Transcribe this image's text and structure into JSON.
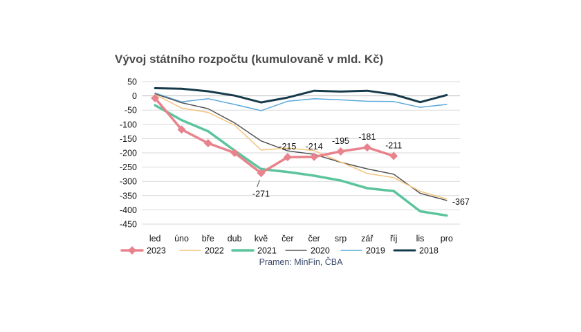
{
  "chart_data": {
    "type": "line",
    "title": "Vývoj státního rozpočtu (kumulovaně v mld. Kč)",
    "source": "Pramen: MinFin, ČBA",
    "categories": [
      "led",
      "úno",
      "bře",
      "dub",
      "kvě",
      "čer",
      "čer",
      "srp",
      "zář",
      "říj",
      "lis",
      "pro"
    ],
    "yticks": [
      "50",
      "0",
      "-50",
      "-100",
      "-150",
      "-200",
      "-250",
      "-300",
      "-350",
      "-400",
      "-450"
    ],
    "ylim": [
      -450,
      50
    ],
    "grid": true,
    "legend_position": "bottom",
    "series": [
      {
        "name": "2023",
        "color": "#e8828c",
        "width": 3.5,
        "marker": "diamond",
        "values": [
          -8,
          -118,
          -166,
          -200,
          -271,
          -215,
          -214,
          -195,
          -181,
          -211,
          null,
          null
        ]
      },
      {
        "name": "2022",
        "color": "#f3c37c",
        "width": 1.5,
        "values": [
          5,
          -43,
          -58,
          -103,
          -190,
          -183,
          -192,
          -232,
          -272,
          -287,
          -335,
          -362
        ]
      },
      {
        "name": "2021",
        "color": "#5cc49c",
        "width": 3.5,
        "values": [
          -33,
          -85,
          -124,
          -192,
          -257,
          -267,
          -280,
          -297,
          -324,
          -334,
          -405,
          -420
        ]
      },
      {
        "name": "2020",
        "color": "#555555",
        "width": 1.5,
        "values": [
          7,
          -24,
          -45,
          -95,
          -158,
          -193,
          -205,
          -233,
          -256,
          -275,
          -342,
          -367
        ]
      },
      {
        "name": "2019",
        "color": "#5ba8db",
        "width": 1.5,
        "values": [
          10,
          -21,
          -10,
          -30,
          -52,
          -19,
          -10,
          -14,
          -19,
          -20,
          -40,
          -30
        ]
      },
      {
        "name": "2018",
        "color": "#163a4b",
        "width": 3,
        "values": [
          27,
          25,
          16,
          1,
          -23,
          -6,
          18,
          15,
          18,
          5,
          -22,
          3
        ]
      }
    ],
    "data_labels": [
      {
        "series": "2023",
        "index": 4,
        "text": "-271",
        "pos": "below"
      },
      {
        "series": "2023",
        "index": 5,
        "text": "-215",
        "pos": "above"
      },
      {
        "series": "2023",
        "index": 6,
        "text": "-214",
        "pos": "above"
      },
      {
        "series": "2023",
        "index": 7,
        "text": "-195",
        "pos": "above"
      },
      {
        "series": "2023",
        "index": 8,
        "text": "-181",
        "pos": "above"
      },
      {
        "series": "2023",
        "index": 9,
        "text": "-211",
        "pos": "above"
      },
      {
        "series": "2020",
        "index": 11,
        "text": "-367",
        "pos": "right"
      }
    ]
  }
}
